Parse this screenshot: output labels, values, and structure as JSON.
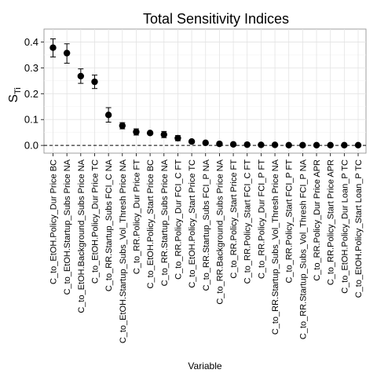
{
  "chart_data": {
    "type": "scatter",
    "title": "Total Sensitivity Indices",
    "xlabel": "Variable",
    "ylabel_main": "S",
    "ylabel_sub": "Ti",
    "ylim": [
      -0.03,
      0.45
    ],
    "yticks": [
      0.0,
      0.1,
      0.2,
      0.3,
      0.4
    ],
    "ytick_labels": [
      "0.0",
      "0.1",
      "0.2",
      "0.3",
      "0.4"
    ],
    "reference_line": 0.0,
    "grid": true,
    "categories": [
      "C_to_EtOH.Policy_Dur Price BC",
      "C_to_EtOH.Startup_Subs Price NA",
      "C_to_EtOH.Background_Subs Price NA",
      "C_to_EtOH.Policy_Dur Price TC",
      "C_to_RR.Startup_Subs FCI_C NA",
      "C_to_EtOH.Startup_Subs_Vol_Thresh Price NA",
      "C_to_RR.Policy_Dur Price FT",
      "C_to_EtOH.Policy_Start Price BC",
      "C_to_RR.Startup_Subs Price NA",
      "C_to_RR.Policy_Dur FCI_C FT",
      "C_to_EtOH.Policy_Start Price TC",
      "C_to_RR.Startup_Subs FCI_P NA",
      "C_to_RR.Background_Subs Price NA",
      "C_to_RR.Policy_Start Price FT",
      "C_to_RR.Policy_Start FCI_C FT",
      "C_to_RR.Policy_Dur FCI_P FT",
      "C_to_RR.Startup_Subs_Vol_Thresh Price NA",
      "C_to_RR.Policy_Start FCI_P FT",
      "C_to_RR.Startup_Subs_Vol_Thresh FCI_P NA",
      "C_to_RR.Policy_Dur Price APR",
      "C_to_RR.Policy_Start Price APR",
      "C_to_EtOH.Policy_Dur Loan_P TC",
      "C_to_EtOH.Policy_Start Loan_P TC"
    ],
    "series": [
      {
        "values": [
          0.378,
          0.357,
          0.268,
          0.246,
          0.118,
          0.076,
          0.052,
          0.048,
          0.042,
          0.028,
          0.015,
          0.01,
          0.006,
          0.004,
          0.003,
          0.002,
          0.002,
          0.001,
          0.001,
          0.001,
          0.001,
          0.001,
          0.001
        ],
        "lower": [
          0.342,
          0.318,
          0.24,
          0.22,
          0.09,
          0.064,
          0.04,
          0.043,
          0.03,
          0.018,
          0.01,
          0.007,
          0.003,
          0.002,
          0.001,
          0.0,
          0.0,
          0.0,
          0.0,
          0.0,
          0.0,
          0.0,
          0.0
        ],
        "upper": [
          0.412,
          0.393,
          0.296,
          0.272,
          0.146,
          0.088,
          0.064,
          0.053,
          0.054,
          0.038,
          0.02,
          0.013,
          0.009,
          0.006,
          0.005,
          0.004,
          0.004,
          0.002,
          0.002,
          0.002,
          0.002,
          0.002,
          0.002
        ]
      }
    ]
  }
}
